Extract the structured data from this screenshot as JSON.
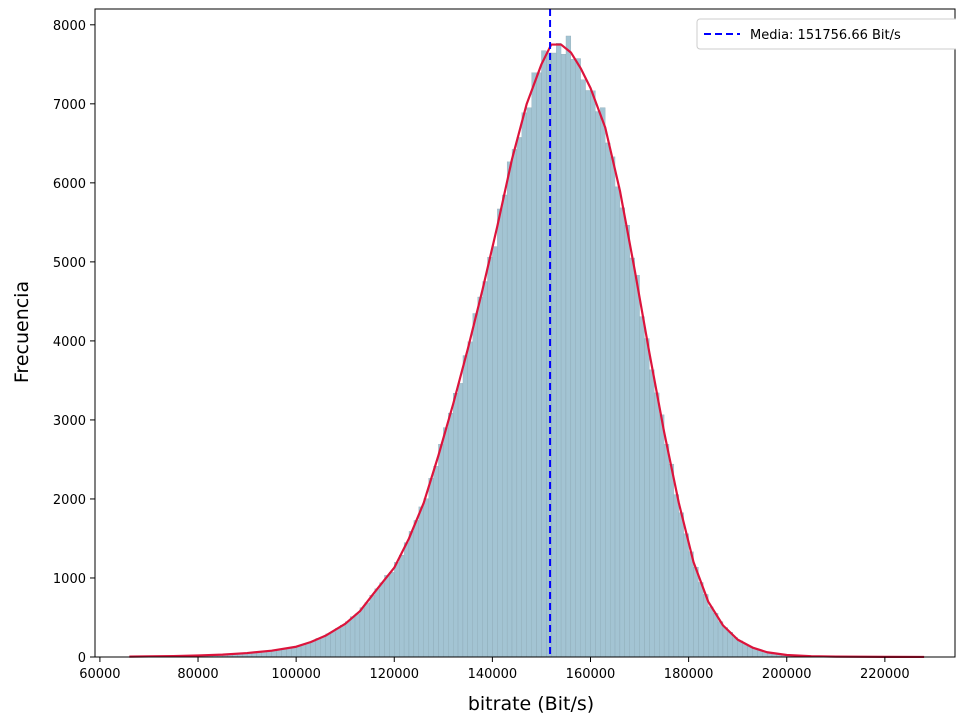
{
  "chart_data": {
    "type": "bar",
    "title": "",
    "xlabel": "bitrate (Bit/s)",
    "ylabel": "Frecuencia",
    "xlim": [
      59000,
      234500
    ],
    "ylim": [
      0,
      8200
    ],
    "x_ticks": [
      60000,
      80000,
      100000,
      120000,
      140000,
      160000,
      180000,
      200000,
      220000
    ],
    "y_ticks": [
      0,
      1000,
      2000,
      3000,
      4000,
      5000,
      6000,
      7000,
      8000
    ],
    "grid": false,
    "legend_position": "top-right",
    "mean": {
      "value": 151756.66,
      "label": "Media: 151756.66 Bit/s",
      "color": "#0000ff",
      "style": "dashed"
    },
    "histogram": {
      "color": "#a3c4d3",
      "edge_color": "#7f9aa6",
      "bin_width": 1000,
      "x_start": 66000,
      "x_end": 228000
    },
    "density_curve": {
      "color": "#dc143c",
      "x": [
        66000,
        70000,
        75000,
        80000,
        85000,
        90000,
        95000,
        100000,
        103000,
        106000,
        110000,
        113000,
        116000,
        120000,
        123000,
        126000,
        129000,
        132000,
        135000,
        138000,
        141000,
        144000,
        147000,
        150000,
        152000,
        154000,
        156000,
        158000,
        160000,
        163000,
        166000,
        169000,
        172000,
        175000,
        178000,
        181000,
        184000,
        187000,
        190000,
        193000,
        196000,
        200000,
        205000,
        210000,
        215000,
        220000,
        228000
      ],
      "y": [
        5,
        8,
        12,
        20,
        30,
        50,
        80,
        130,
        190,
        270,
        420,
        580,
        820,
        1130,
        1500,
        1950,
        2550,
        3200,
        3900,
        4650,
        5450,
        6300,
        7000,
        7500,
        7750,
        7750,
        7650,
        7450,
        7200,
        6700,
        5900,
        4900,
        3850,
        2850,
        1950,
        1200,
        700,
        400,
        220,
        120,
        60,
        25,
        10,
        5,
        3,
        2,
        1
      ]
    }
  }
}
